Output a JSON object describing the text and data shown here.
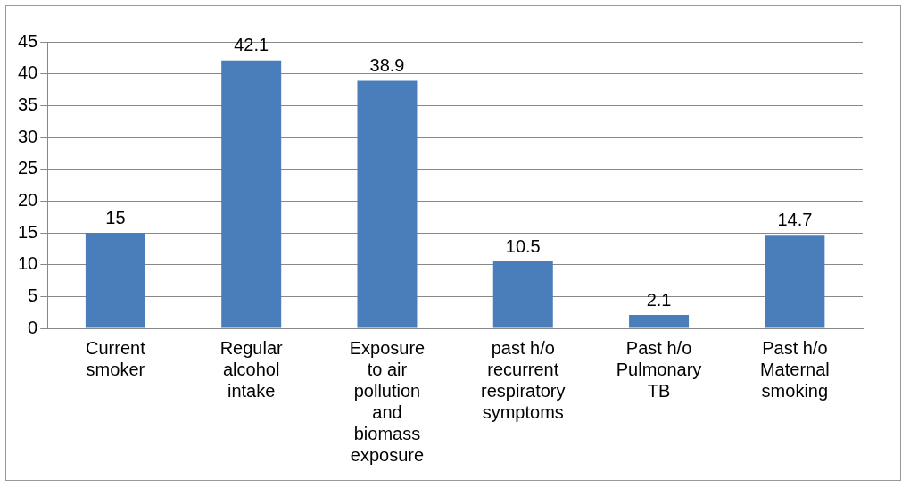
{
  "chart_data": {
    "type": "bar",
    "categories": [
      "Current smoker",
      "Regular alcohol intake",
      "Exposure to air pollution and biomass exposure",
      "past h/o recurrent respiratory symptoms",
      "Past h/o Pulmonary TB",
      "Past h/o Maternal smoking"
    ],
    "values": [
      15,
      42.1,
      38.9,
      10.5,
      2.1,
      14.7
    ],
    "color": "#4a7ebb",
    "ylim": [
      0,
      45
    ],
    "yticks": [
      0,
      5,
      10,
      15,
      20,
      25,
      30,
      35,
      40,
      45
    ],
    "grid": "y",
    "data_labels": true,
    "legend": false
  }
}
